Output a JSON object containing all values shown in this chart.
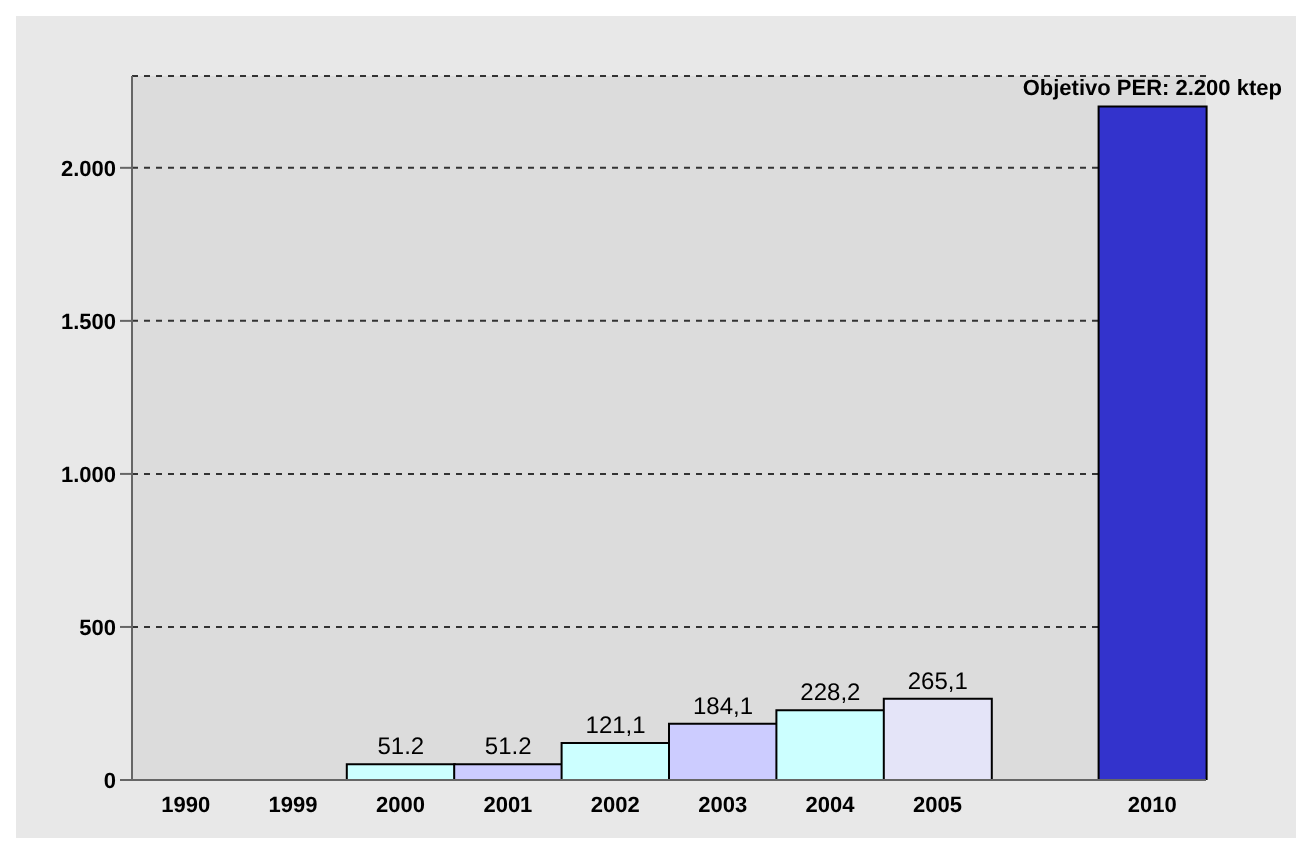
{
  "chart_data": {
    "type": "bar",
    "categories": [
      "1990",
      "1999",
      "2000",
      "2001",
      "2002",
      "2003",
      "2004",
      "2005",
      null,
      "2010"
    ],
    "values": [
      null,
      null,
      51.2,
      51.2,
      121.1,
      184.1,
      228.2,
      265.1,
      null,
      2200
    ],
    "colors": [
      "#ccffff",
      "#ccccff",
      "#ccffff",
      "#ccccff",
      "#ccffff",
      "#ccccff",
      "#ccffff",
      "#e4e4f8",
      "#ccccff",
      "#3333cc"
    ],
    "value_labels": [
      null,
      null,
      "51.2",
      "51.2",
      "121,1",
      "184,1",
      "228,2",
      "265,1",
      null,
      null
    ],
    "annotations": [
      {
        "text": "Objetivo PER: 2.200 ktep",
        "x": "2010",
        "y": 2200
      }
    ],
    "ylim": [
      0,
      2300
    ],
    "yticks": [
      0,
      {
        "value": 500,
        "label": "500"
      },
      {
        "value": 1000,
        "label": "1.000"
      },
      {
        "value": 1500,
        "label": "1.500"
      },
      {
        "value": 2000,
        "label": "2.000"
      }
    ],
    "grid": "y"
  }
}
